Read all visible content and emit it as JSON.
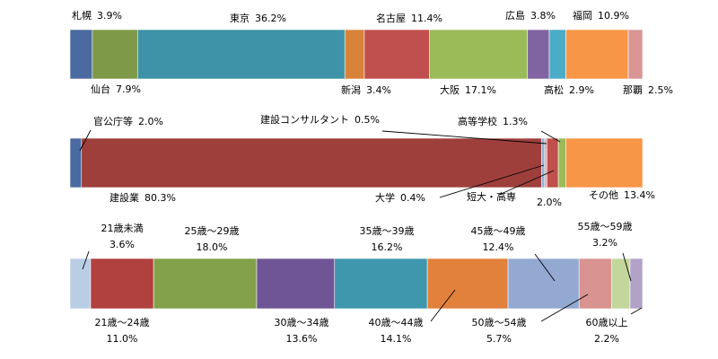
{
  "chart_data": [
    {
      "type": "bar",
      "orientation": "horizontal-stacked-100",
      "segments": [
        {
          "name": "札幌",
          "pct": "3.9%",
          "value": 3.9,
          "color": "#4a6aa0"
        },
        {
          "name": "仙台",
          "pct": "7.9%",
          "value": 7.9,
          "color": "#7e9a48"
        },
        {
          "name": "東京",
          "pct": "36.2%",
          "value": 36.2,
          "color": "#3f93a8"
        },
        {
          "name": "新潟",
          "pct": "3.4%",
          "value": 3.4,
          "color": "#d9823a"
        },
        {
          "name": "名古屋",
          "pct": "11.4%",
          "value": 11.4,
          "color": "#c0504d"
        },
        {
          "name": "大阪",
          "pct": "17.1%",
          "value": 17.1,
          "color": "#9bbb59"
        },
        {
          "name": "広島",
          "pct": "3.8%",
          "value": 3.8,
          "color": "#8064a2"
        },
        {
          "name": "高松",
          "pct": "2.9%",
          "value": 2.9,
          "color": "#4bacc6"
        },
        {
          "name": "福岡",
          "pct": "10.9%",
          "value": 10.9,
          "color": "#f79646"
        },
        {
          "name": "那覇",
          "pct": "2.5%",
          "value": 2.5,
          "color": "#d99694"
        }
      ]
    },
    {
      "type": "bar",
      "orientation": "horizontal-stacked-100",
      "segments": [
        {
          "name": "官公庁等",
          "pct": "2.0%",
          "value": 2.0,
          "color": "#4a6aa0"
        },
        {
          "name": "建設業",
          "pct": "80.3%",
          "value": 80.3,
          "color": "#9e3f3c"
        },
        {
          "name": "建設コンサルタント",
          "pct": "0.5%",
          "value": 0.5,
          "color": "#8fb0d8"
        },
        {
          "name": "大学",
          "pct": "0.4%",
          "value": 0.4,
          "color": "#e8b0a8"
        },
        {
          "name": "短大・高専",
          "pct": "2.0%",
          "value": 2.0,
          "color": "#c0504d"
        },
        {
          "name": "高等学校",
          "pct": "1.3%",
          "value": 1.3,
          "color": "#9bbb59"
        },
        {
          "name": "その他",
          "pct": "13.4%",
          "value": 13.4,
          "color": "#f79646"
        }
      ]
    },
    {
      "type": "bar",
      "orientation": "horizontal-stacked-100",
      "segments": [
        {
          "name": "21歳未満",
          "pct": "3.6%",
          "value": 3.6,
          "color": "#b9cde5"
        },
        {
          "name": "21歳～24歳",
          "pct": "11.0%",
          "value": 11.0,
          "color": "#b0413e"
        },
        {
          "name": "25歳～29歳",
          "pct": "18.0%",
          "value": 18.0,
          "color": "#82a14a"
        },
        {
          "name": "30歳～34歳",
          "pct": "13.6%",
          "value": 13.6,
          "color": "#6f5595"
        },
        {
          "name": "35歳～39歳",
          "pct": "16.2%",
          "value": 16.2,
          "color": "#3f97ae"
        },
        {
          "name": "40歳～44歳",
          "pct": "14.1%",
          "value": 14.1,
          "color": "#e1813c"
        },
        {
          "name": "45歳～49歳",
          "pct": "12.4%",
          "value": 12.4,
          "color": "#93a9d2"
        },
        {
          "name": "50歳～54歳",
          "pct": "5.7%",
          "value": 5.7,
          "color": "#d99391"
        },
        {
          "name": "55歳～59歳",
          "pct": "3.2%",
          "value": 3.2,
          "color": "#c3d69b"
        },
        {
          "name": "60歳以上",
          "pct": "2.2%",
          "value": 2.2,
          "color": "#b3a2c7"
        }
      ]
    }
  ]
}
